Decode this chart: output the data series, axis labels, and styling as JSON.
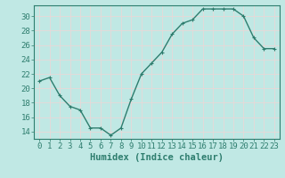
{
  "x": [
    0,
    1,
    2,
    3,
    4,
    5,
    6,
    7,
    8,
    9,
    10,
    11,
    12,
    13,
    14,
    15,
    16,
    17,
    18,
    19,
    20,
    21,
    22,
    23
  ],
  "y": [
    21,
    21.5,
    19,
    17.5,
    17,
    14.5,
    14.5,
    13.5,
    14.5,
    18.5,
    22,
    23.5,
    25,
    27.5,
    29,
    29.5,
    31,
    31,
    31,
    31,
    30,
    27,
    25.5,
    25.5
  ],
  "line_color": "#2e7d6e",
  "marker": "+",
  "marker_size": 3,
  "bg_color": "#c0e8e4",
  "grid_color": "#e8d8d8",
  "xlabel": "Humidex (Indice chaleur)",
  "ylim": [
    13,
    31.5
  ],
  "xlim": [
    -0.5,
    23.5
  ],
  "yticks": [
    14,
    16,
    18,
    20,
    22,
    24,
    26,
    28,
    30
  ],
  "xtick_labels": [
    "0",
    "1",
    "2",
    "3",
    "4",
    "5",
    "6",
    "7",
    "8",
    "9",
    "10",
    "11",
    "12",
    "13",
    "14",
    "15",
    "16",
    "17",
    "18",
    "19",
    "20",
    "21",
    "22",
    "23"
  ],
  "tick_color": "#2e7d6e",
  "label_color": "#2e7d6e",
  "xlabel_fontsize": 7.5,
  "tick_fontsize": 6.5,
  "linewidth": 1.0
}
